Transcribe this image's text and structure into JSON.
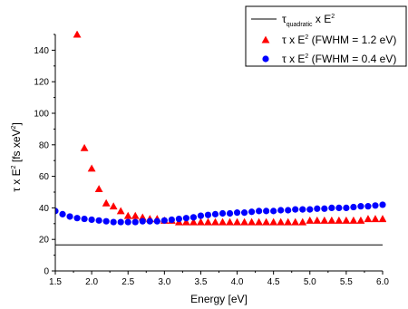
{
  "chart_data": {
    "type": "scatter",
    "xlabel": "Energy [eV]",
    "ylabel_parts": [
      "τ x E",
      "2",
      " [fs xeV",
      "2",
      "]"
    ],
    "xlim": [
      1.5,
      6.0
    ],
    "ylim": [
      0,
      150
    ],
    "xticks": [
      "1.5",
      "2.0",
      "2.5",
      "3.0",
      "3.5",
      "4.0",
      "4.5",
      "5.0",
      "5.5",
      "6.0"
    ],
    "yticks": [
      "0",
      "20",
      "40",
      "60",
      "80",
      "100",
      "120",
      "140"
    ],
    "grid": false,
    "legend_position": "top-right",
    "series": [
      {
        "label_parts": [
          "τ",
          "quadratic",
          " x E",
          "2"
        ],
        "marker": "line",
        "color": "#000000",
        "x": [
          1.5,
          6.0
        ],
        "y": [
          16.5,
          16.5
        ]
      },
      {
        "label_parts": [
          "τ x E",
          "2",
          " (FWHM = 1.2 eV)"
        ],
        "marker": "triangle",
        "color": "#ff0000",
        "x": [
          1.8,
          1.9,
          2.0,
          2.1,
          2.2,
          2.3,
          2.4,
          2.5,
          2.6,
          2.7,
          2.8,
          2.9,
          3.0,
          3.1,
          3.2,
          3.3,
          3.4,
          3.5,
          3.6,
          3.7,
          3.8,
          3.9,
          4.0,
          4.1,
          4.2,
          4.3,
          4.4,
          4.5,
          4.6,
          4.7,
          4.8,
          4.9,
          5.0,
          5.1,
          5.2,
          5.3,
          5.4,
          5.5,
          5.6,
          5.7,
          5.8,
          5.9,
          6.0
        ],
        "y": [
          150,
          78,
          65,
          52,
          43,
          41,
          38,
          35,
          35,
          34,
          33,
          33,
          32,
          32,
          31,
          31,
          31,
          31,
          31,
          31,
          31,
          31,
          31,
          31,
          31,
          31,
          31,
          31,
          31,
          31,
          31,
          31,
          32,
          32,
          32,
          32,
          32,
          32,
          32,
          32,
          33,
          33,
          33
        ]
      },
      {
        "label_parts": [
          "τ x E",
          "2",
          " (FWHM = 0.4 eV)"
        ],
        "marker": "circle",
        "color": "#0000ff",
        "x": [
          1.5,
          1.6,
          1.7,
          1.8,
          1.9,
          2.0,
          2.1,
          2.2,
          2.3,
          2.4,
          2.5,
          2.6,
          2.7,
          2.8,
          2.9,
          3.0,
          3.1,
          3.2,
          3.3,
          3.4,
          3.5,
          3.6,
          3.7,
          3.8,
          3.9,
          4.0,
          4.1,
          4.2,
          4.3,
          4.4,
          4.5,
          4.6,
          4.7,
          4.8,
          4.9,
          5.0,
          5.1,
          5.2,
          5.3,
          5.4,
          5.5,
          5.6,
          5.7,
          5.8,
          5.9,
          6.0
        ],
        "y": [
          38,
          36,
          34.5,
          33.5,
          33,
          32.5,
          32,
          31.5,
          31,
          31,
          31,
          31,
          31.5,
          31.5,
          31.5,
          32,
          32.5,
          33,
          33.5,
          34,
          35,
          35.5,
          36,
          36.5,
          36.5,
          37,
          37,
          37.5,
          38,
          38,
          38,
          38.5,
          38.5,
          39,
          39,
          39,
          39.5,
          39.5,
          40,
          40,
          40,
          40.5,
          41,
          41,
          41.5,
          42
        ]
      }
    ]
  }
}
